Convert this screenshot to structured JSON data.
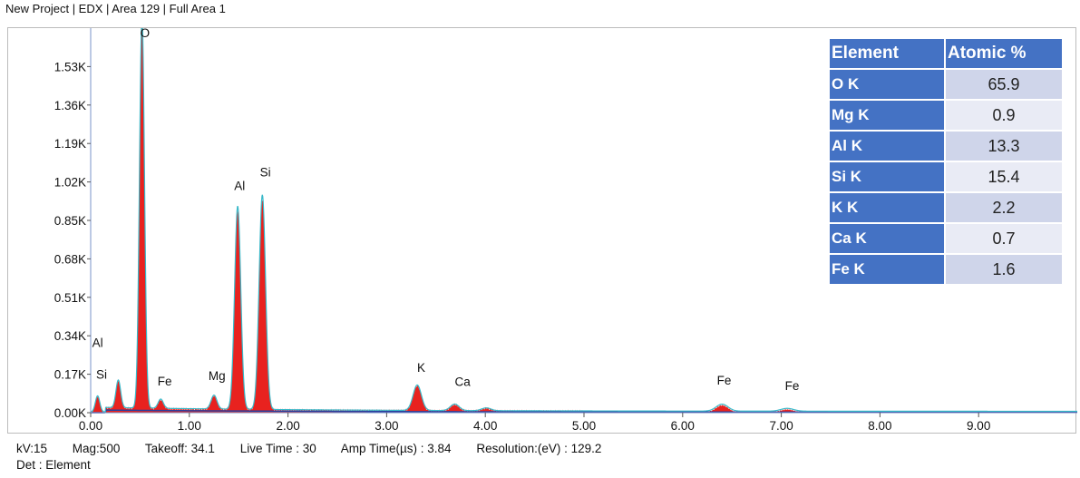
{
  "header": {
    "title": "New Project | EDX | Area 129 | Full Area 1"
  },
  "chart_data": {
    "type": "area",
    "title": "",
    "xlabel": "",
    "ylabel": "",
    "xlim": [
      0,
      10
    ],
    "ylim": [
      0,
      1700
    ],
    "x_ticks": [
      "0.00",
      "1.00",
      "2.00",
      "3.00",
      "4.00",
      "5.00",
      "6.00",
      "7.00",
      "8.00",
      "9.00"
    ],
    "y_ticks": [
      "0.00K",
      "0.17K",
      "0.34K",
      "0.51K",
      "0.68K",
      "0.85K",
      "1.02K",
      "1.19K",
      "1.36K",
      "1.53K"
    ],
    "peaks": [
      {
        "energy": 0.07,
        "counts": 70
      },
      {
        "energy": 0.28,
        "counts": 120
      },
      {
        "energy": 0.52,
        "counts": 1700
      },
      {
        "energy": 0.71,
        "counts": 40
      },
      {
        "energy": 1.25,
        "counts": 60
      },
      {
        "energy": 1.49,
        "counts": 880
      },
      {
        "energy": 1.74,
        "counts": 930
      },
      {
        "energy": 3.31,
        "counts": 110
      },
      {
        "energy": 3.69,
        "counts": 28
      },
      {
        "energy": 4.01,
        "counts": 12
      },
      {
        "energy": 6.4,
        "counts": 30
      },
      {
        "energy": 7.06,
        "counts": 12
      }
    ],
    "peak_labels": [
      {
        "label": "Al",
        "energy": 0.07,
        "counts": 290
      },
      {
        "label": "Si",
        "energy": 0.11,
        "counts": 150
      },
      {
        "label": "O",
        "energy": 0.55,
        "counts": 1660
      },
      {
        "label": "Fe",
        "energy": 0.75,
        "counts": 120
      },
      {
        "label": "Mg",
        "energy": 1.28,
        "counts": 145
      },
      {
        "label": "Al",
        "energy": 1.51,
        "counts": 985
      },
      {
        "label": "Si",
        "energy": 1.77,
        "counts": 1045
      },
      {
        "label": "K",
        "energy": 3.35,
        "counts": 180
      },
      {
        "label": "Ca",
        "energy": 3.77,
        "counts": 118
      },
      {
        "label": "Fe",
        "energy": 6.42,
        "counts": 124
      },
      {
        "label": "Fe",
        "energy": 7.11,
        "counts": 100
      }
    ],
    "colors": {
      "spectrum_fill": "#e8221f",
      "outline": "#38b8c8",
      "background_trace": "#2a3f9e"
    },
    "grid": false
  },
  "table": {
    "headers": [
      "Element",
      "Atomic %"
    ],
    "rows": [
      {
        "element": "O K",
        "value": "65.9"
      },
      {
        "element": "Mg K",
        "value": "0.9"
      },
      {
        "element": "Al K",
        "value": "13.3"
      },
      {
        "element": "Si K",
        "value": "15.4"
      },
      {
        "element": "K K",
        "value": "2.2"
      },
      {
        "element": "Ca K",
        "value": "0.7"
      },
      {
        "element": "Fe K",
        "value": "1.6"
      }
    ]
  },
  "footer": {
    "kv": "kV:15",
    "mag": "Mag:500",
    "takeoff": "Takeoff: 34.1",
    "live_time": "Live Time : 30",
    "amp_time": "Amp Time(µs) : 3.84",
    "resolution": "Resolution:(eV) : 129.2",
    "det": "Det : Element"
  }
}
